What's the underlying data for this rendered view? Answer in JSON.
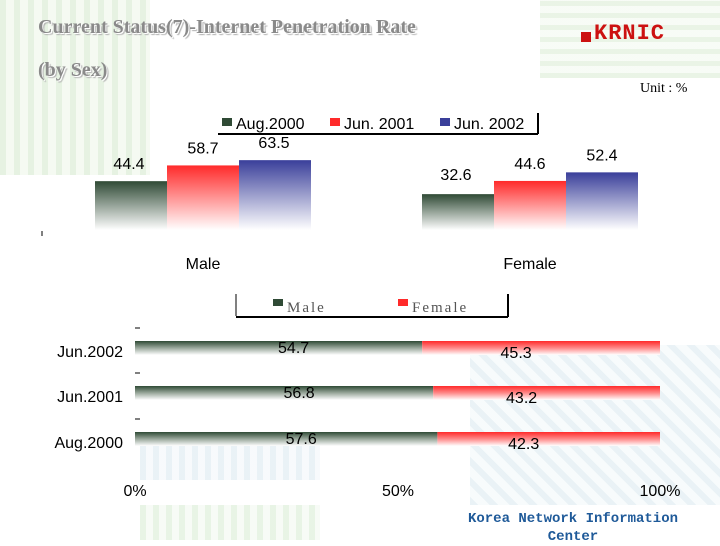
{
  "title_line1": "Current Status(7)-Internet Penetration Rate",
  "title_line2": "(by Sex)",
  "logo_text": "KRNIC",
  "unit_label": "Unit : %",
  "footer": "Korea Network Information Center",
  "colors": {
    "aug2000": "#2f4a35",
    "jun2001": "#ff2a2a",
    "jun2002": "#3a3f9a",
    "male": "#2f4a35",
    "female": "#ff2a2a"
  },
  "chart_data": [
    {
      "type": "bar",
      "categories": [
        "Male",
        "Female"
      ],
      "series": [
        {
          "name": "Aug.2000",
          "values": [
            44.4,
            32.6
          ]
        },
        {
          "name": "Jun. 2001",
          "values": [
            58.7,
            44.6
          ]
        },
        {
          "name": "Jun. 2002",
          "values": [
            63.5,
            52.4
          ]
        }
      ],
      "legend": "top",
      "grid": false
    },
    {
      "type": "bar",
      "orientation": "horizontal-stacked-100",
      "categories": [
        "Jun.2002",
        "Jun.2001",
        "Aug.2000"
      ],
      "series": [
        {
          "name": "Male",
          "values": [
            54.7,
            56.8,
            57.6
          ]
        },
        {
          "name": "Female",
          "values": [
            45.3,
            43.2,
            42.3
          ]
        }
      ],
      "x_ticks": [
        "0%",
        "50%",
        "100%"
      ],
      "xlim": [
        0,
        100
      ],
      "legend": "top",
      "grid": false
    }
  ]
}
